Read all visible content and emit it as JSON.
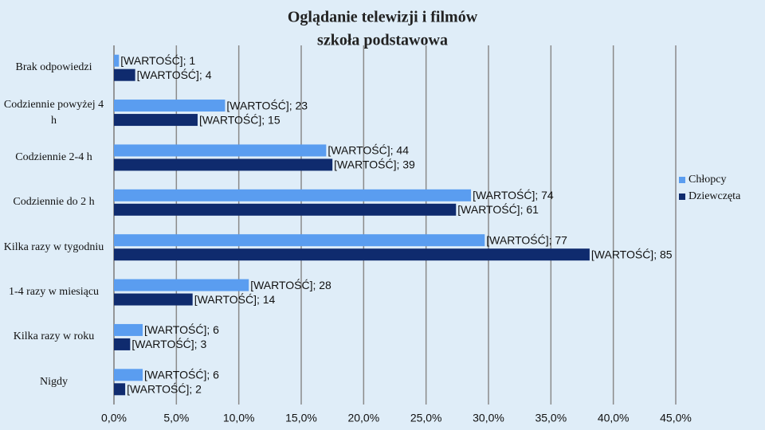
{
  "chart_data": {
    "type": "hbar",
    "title": "Oglądanie telewizji i filmów",
    "subtitle": "szkoła podstawowa",
    "categories": [
      "Brak odpowiedzi",
      "Codziennie powyżej 4 h",
      "Codziennie 2-4 h",
      "Codziennie do 2 h",
      "Kilka razy w tygodniu",
      "1-4 razy w miesiącu",
      "Kilka razy w roku",
      "Nigdy"
    ],
    "series": [
      {
        "name": "Chłopcy",
        "color": "#5a9df0",
        "values": [
          0.4,
          8.9,
          17.0,
          28.6,
          29.7,
          10.8,
          2.3,
          2.3
        ],
        "data_labels": [
          "[WARTOŚĆ]; 1",
          "[WARTOŚĆ]; 23",
          "[WARTOŚĆ]; 44",
          "[WARTOŚĆ]; 74",
          "[WARTOŚĆ]; 77",
          "[WARTOŚĆ]; 28",
          "[WARTOŚĆ]; 6",
          "[WARTOŚĆ]; 6"
        ]
      },
      {
        "name": "Dziewczęta",
        "color": "#0f2b6e",
        "values": [
          1.7,
          6.7,
          17.5,
          27.4,
          38.1,
          6.3,
          1.3,
          0.9
        ],
        "data_labels": [
          "[WARTOŚĆ]; 4",
          "[WARTOŚĆ]; 15",
          "[WARTOŚĆ]; 39",
          "[WARTOŚĆ]; 61",
          "[WARTOŚĆ]; 85",
          "[WARTOŚĆ]; 14",
          "[WARTOŚĆ]; 3",
          "[WARTOŚĆ]; 2"
        ]
      }
    ],
    "xlim": [
      0,
      45
    ],
    "xticks": [
      {
        "value": 0,
        "label": "0,0%"
      },
      {
        "value": 5,
        "label": "5,0%"
      },
      {
        "value": 10,
        "label": "10,0%"
      },
      {
        "value": 15,
        "label": "15,0%"
      },
      {
        "value": 20,
        "label": "20,0%"
      },
      {
        "value": 25,
        "label": "25,0%"
      },
      {
        "value": 30,
        "label": "30,0%"
      },
      {
        "value": 35,
        "label": "35,0%"
      },
      {
        "value": 40,
        "label": "40,0%"
      },
      {
        "value": 45,
        "label": "45,0%"
      }
    ],
    "grid": true,
    "legend": "right"
  }
}
